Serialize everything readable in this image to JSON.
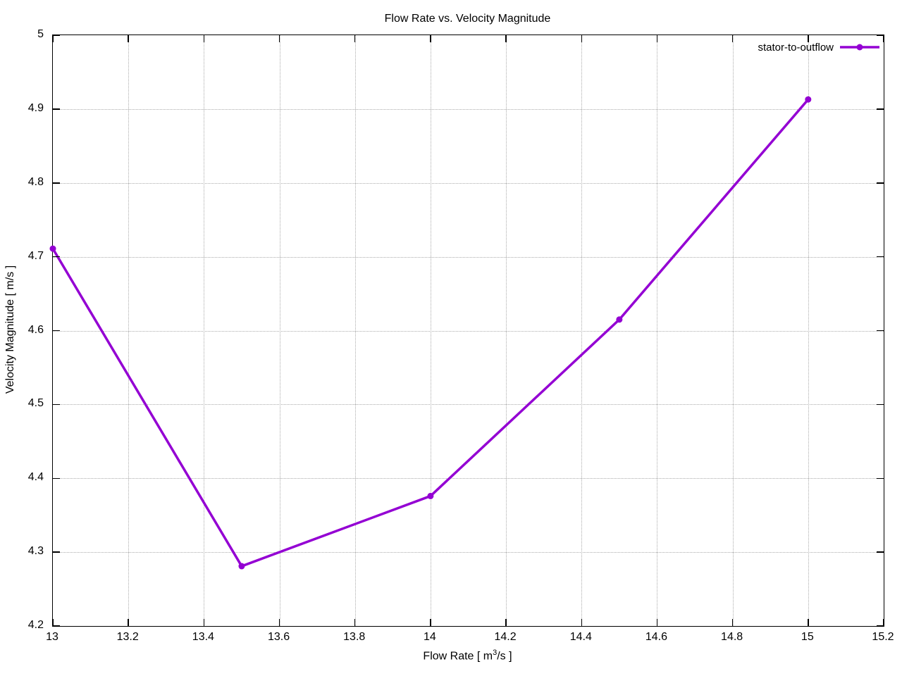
{
  "title": "Flow Rate vs. Velocity Magnitude",
  "legend": {
    "position": "top-right-inside",
    "entries": [
      {
        "label": "stator-to-outflow",
        "color": "#9400d3",
        "marker": "filled-circle"
      }
    ]
  },
  "chart_data": {
    "type": "line",
    "title": "Flow Rate vs. Velocity Magnitude",
    "xlabel": "Flow Rate [ m^3/s ]",
    "xlabel_parts": {
      "pre": "Flow Rate [ m",
      "sup": "3",
      "post": "/s ]"
    },
    "ylabel": "Velocity Magnitude [ m/s ]",
    "xlim": [
      13,
      15.2
    ],
    "ylim": [
      4.2,
      5
    ],
    "xticks": {
      "values": [
        13,
        13.2,
        13.4,
        13.6,
        13.8,
        14,
        14.2,
        14.4,
        14.6,
        14.8,
        15,
        15.2
      ],
      "labels": [
        "13",
        "13.2",
        "13.4",
        "13.6",
        "13.8",
        "14",
        "14.2",
        "14.4",
        "14.6",
        "14.8",
        "15",
        "15.2"
      ]
    },
    "yticks": {
      "values": [
        4.2,
        4.3,
        4.4,
        4.5,
        4.6,
        4.7,
        4.8,
        4.9,
        5
      ],
      "labels": [
        "4.2",
        "4.3",
        "4.4",
        "4.5",
        "4.6",
        "4.7",
        "4.8",
        "4.9",
        "5"
      ]
    },
    "grid": true,
    "grid_style": "dotted",
    "grid_color": "#ababab",
    "background": "#ffffff",
    "border_color": "#000000",
    "legend_position": "top-right-inside",
    "series": [
      {
        "name": "stator-to-outflow",
        "color": "#9400d3",
        "marker": "filled-circle",
        "line_width": 3.5,
        "x": [
          13,
          13.5,
          14,
          14.5,
          15
        ],
        "y": [
          4.711,
          4.281,
          4.376,
          4.615,
          4.913
        ]
      }
    ]
  }
}
